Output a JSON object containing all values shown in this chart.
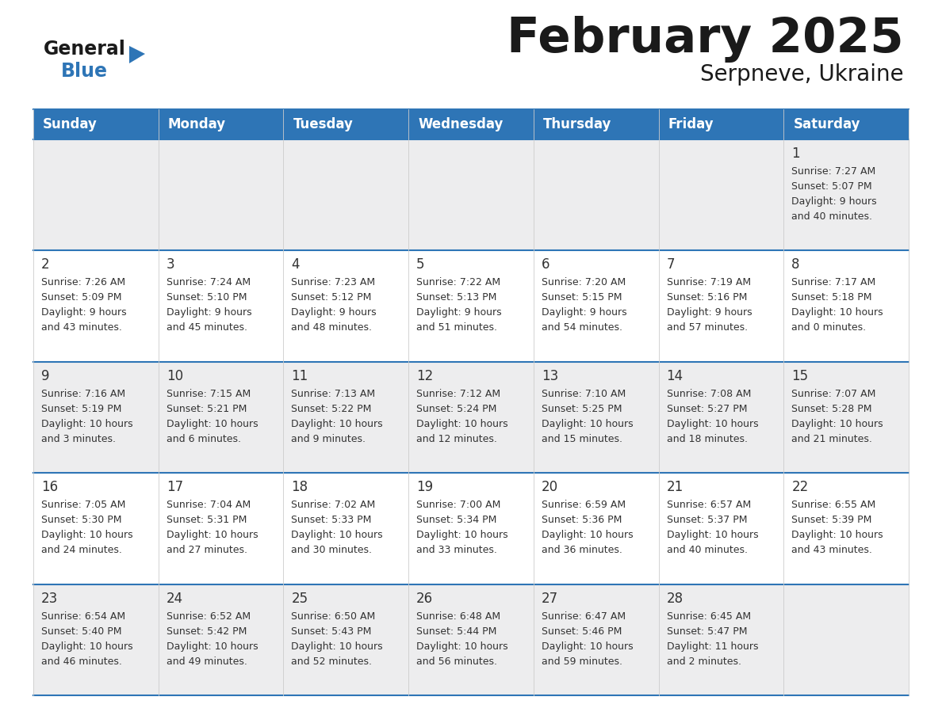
{
  "title": "February 2025",
  "subtitle": "Serpneve, Ukraine",
  "header_bg": "#2E75B6",
  "header_text_color": "#FFFFFF",
  "header_days": [
    "Sunday",
    "Monday",
    "Tuesday",
    "Wednesday",
    "Thursday",
    "Friday",
    "Saturday"
  ],
  "cell_bg_even": "#EDEDEE",
  "cell_bg_odd": "#FFFFFF",
  "cell_border_blue": "#2E75B6",
  "cell_border_gray": "#CCCCCC",
  "day_num_color": "#333333",
  "day_text_color": "#333333",
  "weeks": [
    [
      {
        "day": "",
        "sunrise": "",
        "sunset": "",
        "daylight": ""
      },
      {
        "day": "",
        "sunrise": "",
        "sunset": "",
        "daylight": ""
      },
      {
        "day": "",
        "sunrise": "",
        "sunset": "",
        "daylight": ""
      },
      {
        "day": "",
        "sunrise": "",
        "sunset": "",
        "daylight": ""
      },
      {
        "day": "",
        "sunrise": "",
        "sunset": "",
        "daylight": ""
      },
      {
        "day": "",
        "sunrise": "",
        "sunset": "",
        "daylight": ""
      },
      {
        "day": "1",
        "sunrise": "7:27 AM",
        "sunset": "5:07 PM",
        "daylight": "9 hours\nand 40 minutes."
      }
    ],
    [
      {
        "day": "2",
        "sunrise": "7:26 AM",
        "sunset": "5:09 PM",
        "daylight": "9 hours\nand 43 minutes."
      },
      {
        "day": "3",
        "sunrise": "7:24 AM",
        "sunset": "5:10 PM",
        "daylight": "9 hours\nand 45 minutes."
      },
      {
        "day": "4",
        "sunrise": "7:23 AM",
        "sunset": "5:12 PM",
        "daylight": "9 hours\nand 48 minutes."
      },
      {
        "day": "5",
        "sunrise": "7:22 AM",
        "sunset": "5:13 PM",
        "daylight": "9 hours\nand 51 minutes."
      },
      {
        "day": "6",
        "sunrise": "7:20 AM",
        "sunset": "5:15 PM",
        "daylight": "9 hours\nand 54 minutes."
      },
      {
        "day": "7",
        "sunrise": "7:19 AM",
        "sunset": "5:16 PM",
        "daylight": "9 hours\nand 57 minutes."
      },
      {
        "day": "8",
        "sunrise": "7:17 AM",
        "sunset": "5:18 PM",
        "daylight": "10 hours\nand 0 minutes."
      }
    ],
    [
      {
        "day": "9",
        "sunrise": "7:16 AM",
        "sunset": "5:19 PM",
        "daylight": "10 hours\nand 3 minutes."
      },
      {
        "day": "10",
        "sunrise": "7:15 AM",
        "sunset": "5:21 PM",
        "daylight": "10 hours\nand 6 minutes."
      },
      {
        "day": "11",
        "sunrise": "7:13 AM",
        "sunset": "5:22 PM",
        "daylight": "10 hours\nand 9 minutes."
      },
      {
        "day": "12",
        "sunrise": "7:12 AM",
        "sunset": "5:24 PM",
        "daylight": "10 hours\nand 12 minutes."
      },
      {
        "day": "13",
        "sunrise": "7:10 AM",
        "sunset": "5:25 PM",
        "daylight": "10 hours\nand 15 minutes."
      },
      {
        "day": "14",
        "sunrise": "7:08 AM",
        "sunset": "5:27 PM",
        "daylight": "10 hours\nand 18 minutes."
      },
      {
        "day": "15",
        "sunrise": "7:07 AM",
        "sunset": "5:28 PM",
        "daylight": "10 hours\nand 21 minutes."
      }
    ],
    [
      {
        "day": "16",
        "sunrise": "7:05 AM",
        "sunset": "5:30 PM",
        "daylight": "10 hours\nand 24 minutes."
      },
      {
        "day": "17",
        "sunrise": "7:04 AM",
        "sunset": "5:31 PM",
        "daylight": "10 hours\nand 27 minutes."
      },
      {
        "day": "18",
        "sunrise": "7:02 AM",
        "sunset": "5:33 PM",
        "daylight": "10 hours\nand 30 minutes."
      },
      {
        "day": "19",
        "sunrise": "7:00 AM",
        "sunset": "5:34 PM",
        "daylight": "10 hours\nand 33 minutes."
      },
      {
        "day": "20",
        "sunrise": "6:59 AM",
        "sunset": "5:36 PM",
        "daylight": "10 hours\nand 36 minutes."
      },
      {
        "day": "21",
        "sunrise": "6:57 AM",
        "sunset": "5:37 PM",
        "daylight": "10 hours\nand 40 minutes."
      },
      {
        "day": "22",
        "sunrise": "6:55 AM",
        "sunset": "5:39 PM",
        "daylight": "10 hours\nand 43 minutes."
      }
    ],
    [
      {
        "day": "23",
        "sunrise": "6:54 AM",
        "sunset": "5:40 PM",
        "daylight": "10 hours\nand 46 minutes."
      },
      {
        "day": "24",
        "sunrise": "6:52 AM",
        "sunset": "5:42 PM",
        "daylight": "10 hours\nand 49 minutes."
      },
      {
        "day": "25",
        "sunrise": "6:50 AM",
        "sunset": "5:43 PM",
        "daylight": "10 hours\nand 52 minutes."
      },
      {
        "day": "26",
        "sunrise": "6:48 AM",
        "sunset": "5:44 PM",
        "daylight": "10 hours\nand 56 minutes."
      },
      {
        "day": "27",
        "sunrise": "6:47 AM",
        "sunset": "5:46 PM",
        "daylight": "10 hours\nand 59 minutes."
      },
      {
        "day": "28",
        "sunrise": "6:45 AM",
        "sunset": "5:47 PM",
        "daylight": "11 hours\nand 2 minutes."
      },
      {
        "day": "",
        "sunrise": "",
        "sunset": "",
        "daylight": ""
      }
    ]
  ]
}
